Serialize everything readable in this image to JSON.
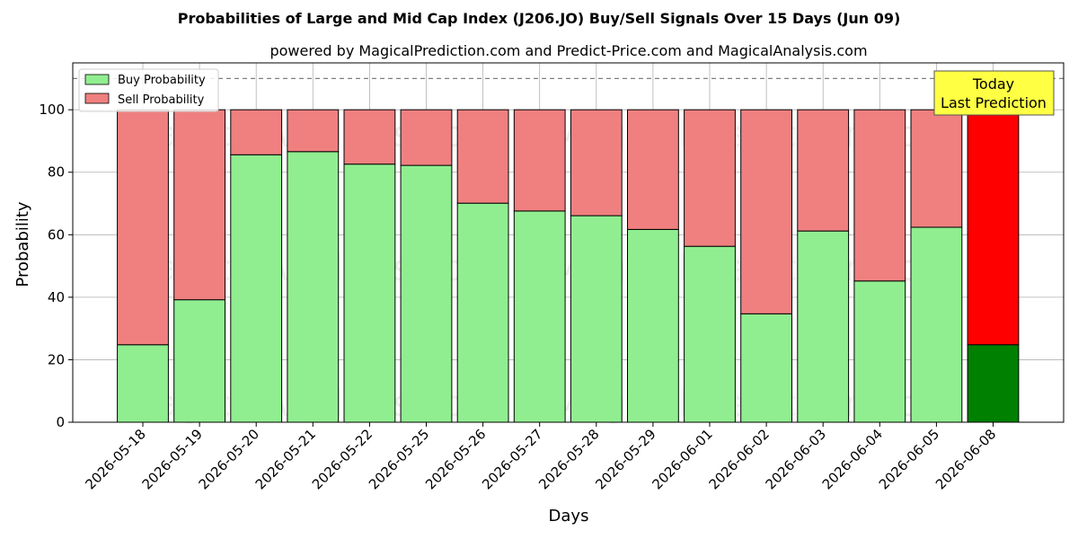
{
  "chart_data": {
    "type": "bar",
    "stacked": true,
    "title": "Probabilities of Large and Mid Cap Index (J206.JO) Buy/Sell Signals Over 15 Days (Jun 09)",
    "subtitle": "powered by MagicalPrediction.com and Predict-Price.com and MagicalAnalysis.com",
    "xlabel": "Days",
    "ylabel": "Probability",
    "ylim": [
      0,
      115
    ],
    "yticks": [
      0,
      20,
      40,
      60,
      80,
      100
    ],
    "grid": true,
    "legend_position": "top-left",
    "threshold_line": 110,
    "categories": [
      "2026-05-18",
      "2026-05-19",
      "2026-05-20",
      "2026-05-21",
      "2026-05-22",
      "2026-05-25",
      "2026-05-26",
      "2026-05-27",
      "2026-05-28",
      "2026-05-29",
      "2026-06-01",
      "2026-06-02",
      "2026-06-03",
      "2026-06-04",
      "2026-06-05",
      "2026-06-08"
    ],
    "series": [
      {
        "name": "Buy Probability",
        "color": "#90ee90",
        "values": [
          24.8,
          39.2,
          85.6,
          86.6,
          82.6,
          82.2,
          70.1,
          67.6,
          66.1,
          61.7,
          56.3,
          34.7,
          61.2,
          45.2,
          62.4,
          24.8
        ]
      },
      {
        "name": "Sell Probability",
        "color": "#f08080",
        "values": [
          75.2,
          60.8,
          14.4,
          13.4,
          17.4,
          17.8,
          29.9,
          32.4,
          33.9,
          38.3,
          43.7,
          65.3,
          38.8,
          54.8,
          37.6,
          75.2
        ]
      }
    ],
    "highlight": {
      "index": 15,
      "buy_color": "#008000",
      "sell_color": "#ff0000",
      "label_line1": "Today",
      "label_line2": "Last Prediction",
      "box_color": "#ffff44"
    },
    "watermarks": [
      "MagicalAnalysis.com",
      "MagicalPrediction.com"
    ]
  }
}
